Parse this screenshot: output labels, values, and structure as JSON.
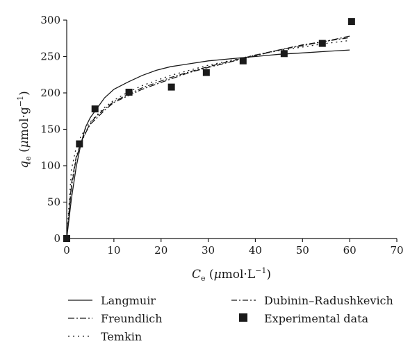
{
  "chart_data": {
    "type": "line",
    "xlabel": {
      "main": "C",
      "sub": "e",
      "unit_pre": " (",
      "mu": "μ",
      "unit_post": "mol·L",
      "sup": "−1",
      "close": ")"
    },
    "ylabel": {
      "main": "q",
      "sub": "e",
      "unit_pre": " (",
      "mu": "μ",
      "unit_post": "mol·g",
      "sup": "−1",
      "close": ")"
    },
    "xlim": [
      0,
      70
    ],
    "ylim": [
      0,
      300
    ],
    "xticks": [
      0,
      10,
      20,
      30,
      40,
      50,
      60,
      70
    ],
    "yticks": [
      0,
      50,
      100,
      150,
      200,
      250,
      300
    ],
    "grid": false,
    "legend_position": "bottom",
    "series": [
      {
        "name": "Langmuir",
        "style": "solid",
        "x": [
          0,
          1,
          2,
          3,
          4,
          5,
          6,
          8,
          10,
          13,
          16,
          19,
          22,
          26,
          30,
          35,
          40,
          45,
          50,
          55,
          60
        ],
        "y": [
          0,
          55,
          98,
          130,
          153,
          166,
          175,
          193,
          205,
          215,
          224,
          231,
          236,
          240,
          244,
          247,
          250,
          253,
          255,
          257,
          259
        ]
      },
      {
        "name": "Freundlich",
        "style": "dashdot",
        "x": [
          0,
          1,
          2,
          3,
          4,
          5,
          6,
          8,
          10,
          13,
          16,
          19,
          22,
          26,
          30,
          35,
          40,
          45,
          50,
          55,
          60
        ],
        "y": [
          0,
          70,
          110,
          130,
          145,
          157,
          163,
          176,
          187,
          196,
          205,
          212,
          219,
          228,
          235,
          243,
          251,
          259,
          265,
          271,
          278
        ]
      },
      {
        "name": "Temkin",
        "style": "dotted",
        "x": [
          0,
          1,
          2,
          3,
          4,
          5,
          6,
          8,
          10,
          13,
          16,
          19,
          22,
          26,
          30,
          35,
          40,
          45,
          50,
          55,
          60
        ],
        "y": [
          0,
          95,
          125,
          140,
          151,
          160,
          167,
          180,
          190,
          201,
          210,
          217,
          224,
          231,
          238,
          245,
          252,
          258,
          263,
          268,
          272
        ]
      },
      {
        "name": "Dubinin–Radushkevich",
        "style": "longdashdot",
        "x": [
          0,
          1,
          2,
          3,
          4,
          5,
          6,
          8,
          10,
          13,
          16,
          19,
          22,
          26,
          30,
          35,
          40,
          45,
          50,
          55,
          60
        ],
        "y": [
          0,
          75,
          112,
          132,
          146,
          158,
          166,
          178,
          188,
          198,
          207,
          214,
          221,
          229,
          236,
          244,
          252,
          259,
          266,
          271,
          276
        ]
      },
      {
        "name": "Experimental data",
        "style": "marker",
        "x": [
          0,
          2.7,
          6.0,
          13.2,
          22.2,
          29.6,
          37.4,
          46.1,
          54.2,
          60.4
        ],
        "y": [
          0,
          130,
          178,
          201,
          208,
          228,
          244,
          254,
          268,
          298
        ]
      }
    ]
  }
}
